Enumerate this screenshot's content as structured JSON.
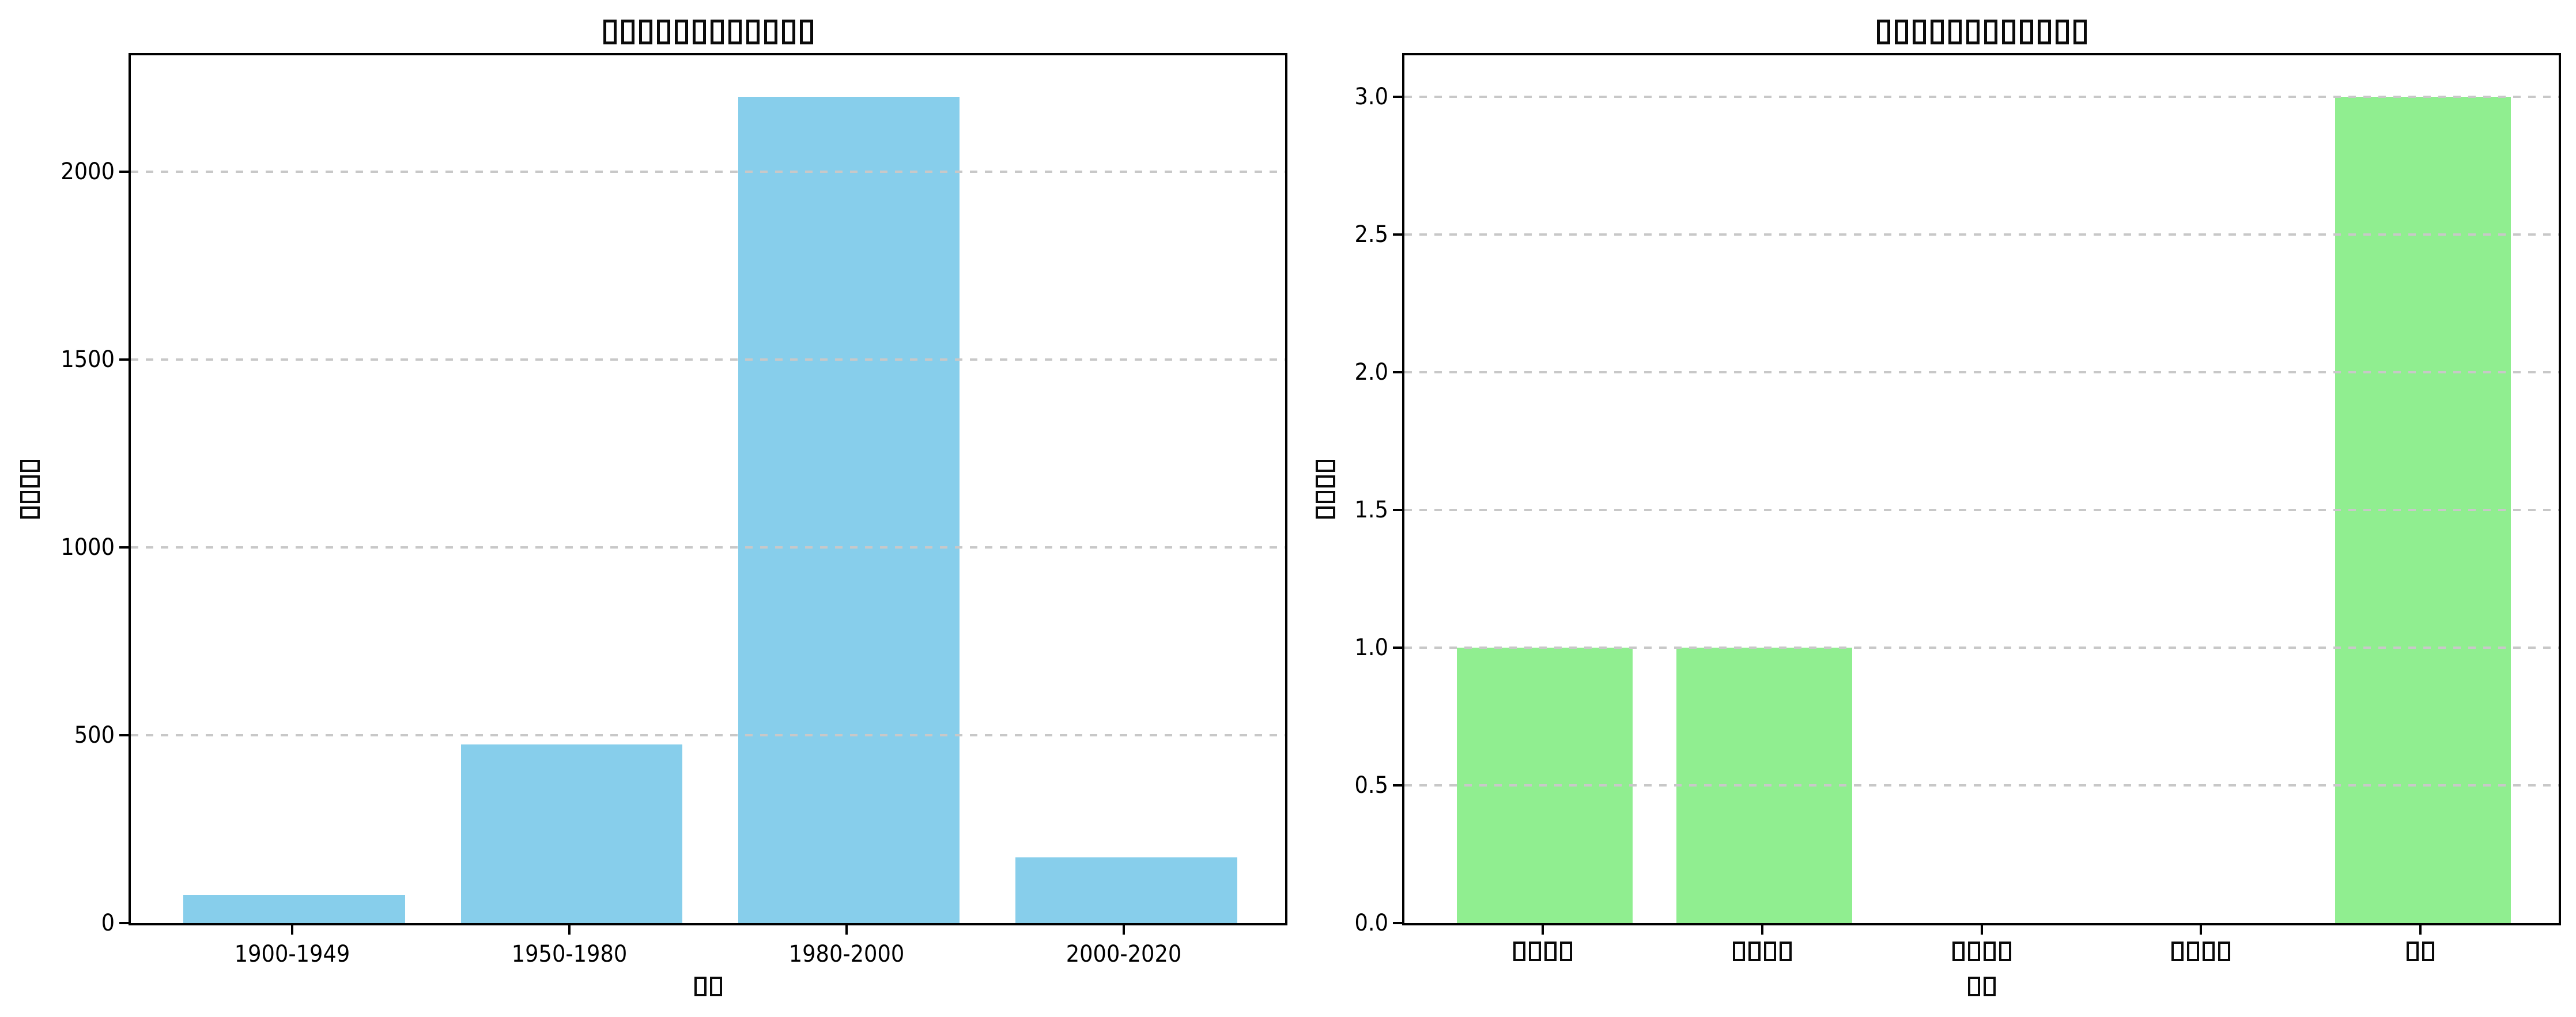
{
  "figure": {
    "background": "#ffffff",
    "layout": "two bar subplots side by side",
    "rendering_note": "all CJK title/label text is displayed as hollow missing-glyph boxes"
  },
  "colors": {
    "axis": "#000000",
    "text": "#000000",
    "grid": "#c8c8c8",
    "skyblue_bar": "#87CEEB",
    "lightgreen_bar": "#90EE90"
  },
  "chart_data": [
    {
      "type": "bar",
      "position": "left",
      "title": "□□□□□□□□□□□□",
      "title_missing_glyph_boxes": 12,
      "xlabel": "□□",
      "xlabel_missing_glyph_boxes": 2,
      "ylabel": "□□□□",
      "ylabel_missing_glyph_boxes": 4,
      "categories": [
        "1900-1949",
        "1950-1980",
        "1980-2000",
        "2000-2020"
      ],
      "values": [
        75,
        475,
        2200,
        175
      ],
      "bar_color": "#87CEEB",
      "yticks": [
        0,
        500,
        1000,
        1500,
        2000
      ],
      "ytick_labels": [
        "0",
        "500",
        "1000",
        "1500",
        "2000"
      ],
      "ylim": [
        0,
        2310
      ],
      "grid": "horizontal dashed",
      "legend": "none"
    },
    {
      "type": "bar",
      "position": "right",
      "title": "□□□□□□□□□□□□",
      "title_missing_glyph_boxes": 12,
      "xlabel": "□□",
      "xlabel_missing_glyph_boxes": 2,
      "ylabel": "□□□□",
      "ylabel_missing_glyph_boxes": 4,
      "categories": [
        "□□□□",
        "□□□□",
        "□□□□",
        "□□□□",
        "□□"
      ],
      "categories_missing_glyph_boxes": [
        4,
        4,
        4,
        4,
        2
      ],
      "values": [
        1,
        1,
        0,
        0,
        3
      ],
      "bar_color": "#90EE90",
      "yticks": [
        0,
        0.5,
        1.0,
        1.5,
        2.0,
        2.5,
        3.0
      ],
      "ytick_labels": [
        "0.0",
        "0.5",
        "1.0",
        "1.5",
        "2.0",
        "2.5",
        "3.0"
      ],
      "ylim": [
        0,
        3.15
      ],
      "grid": "horizontal dashed",
      "legend": "none"
    }
  ]
}
